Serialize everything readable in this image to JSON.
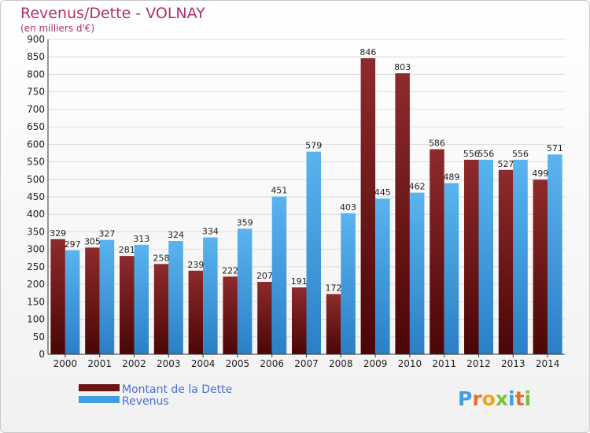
{
  "chart_data": {
    "type": "bar",
    "title": "Revenus/Dette - VOLNAY",
    "subtitle": "(en milliers d'€)",
    "categories": [
      "2000",
      "2001",
      "2002",
      "2003",
      "2004",
      "2005",
      "2006",
      "2007",
      "2008",
      "2009",
      "2010",
      "2011",
      "2012",
      "2013",
      "2014"
    ],
    "series": [
      {
        "name": "Montant de la Dette",
        "color": "#7a1a1c",
        "values": [
          329,
          305,
          281,
          258,
          239,
          222,
          207,
          191,
          172,
          846,
          803,
          586,
          556,
          527,
          499
        ]
      },
      {
        "name": "Revenus",
        "color": "#3f9fe0",
        "values": [
          297,
          327,
          313,
          324,
          334,
          359,
          451,
          579,
          403,
          445,
          462,
          489,
          556,
          556,
          571
        ]
      }
    ],
    "data_labels": [
      [
        "329",
        "305",
        "281",
        "258",
        "239",
        "222",
        "207",
        "191",
        "172",
        "846",
        "803",
        "586",
        "556",
        "527",
        "499"
      ],
      [
        "297",
        "327",
        "313",
        "324",
        "334",
        "359",
        "451",
        "579",
        "403",
        "445",
        "462",
        "489",
        "556",
        "556",
        "571"
      ]
    ],
    "ylim": [
      0,
      900
    ],
    "yticks": [
      0,
      50,
      100,
      150,
      200,
      250,
      300,
      350,
      400,
      450,
      500,
      550,
      600,
      650,
      700,
      750,
      800,
      850,
      900
    ],
    "grid": true,
    "legend_position": "bottom-left"
  },
  "brand": {
    "text": "Proxiti"
  }
}
